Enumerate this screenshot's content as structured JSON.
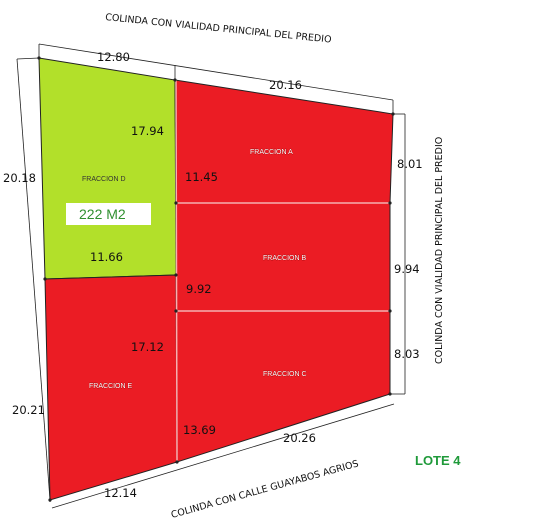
{
  "roads": {
    "north": "COLINDA CON VIALIDAD PRINCIPAL DEL PREDIO",
    "east": "COLINDA CON VIALIDAD PRINCIPAL DEL PREDIO",
    "south": "COLINDA CON CALLE GUAYABOS AGRIOS"
  },
  "fractions": {
    "a": {
      "label": "FRACCION A"
    },
    "b": {
      "label": "FRACCION B"
    },
    "c": {
      "label": "FRACCION C"
    },
    "d": {
      "label": "FRACCION D",
      "area": "222 M2"
    },
    "e": {
      "label": "FRACCION E"
    }
  },
  "dimensions": {
    "north_d": "12.80",
    "north_a": "20.16",
    "west_d": "20.18",
    "west_e": "20.21",
    "south_e": "12.14",
    "south_c": "20.26",
    "east_a": "8.01",
    "east_b": "9.94",
    "east_c": "8.03",
    "d_east": "17.94",
    "d_south": "11.66",
    "a_west": "11.45",
    "b_west": "9.92",
    "e_east": "17.12",
    "c_west": "13.69"
  },
  "lot_label": "LOTE 4",
  "colors": {
    "fraction_d": "#b2e02a",
    "fractions_red": "#eb1c24",
    "lines": "#222222"
  }
}
